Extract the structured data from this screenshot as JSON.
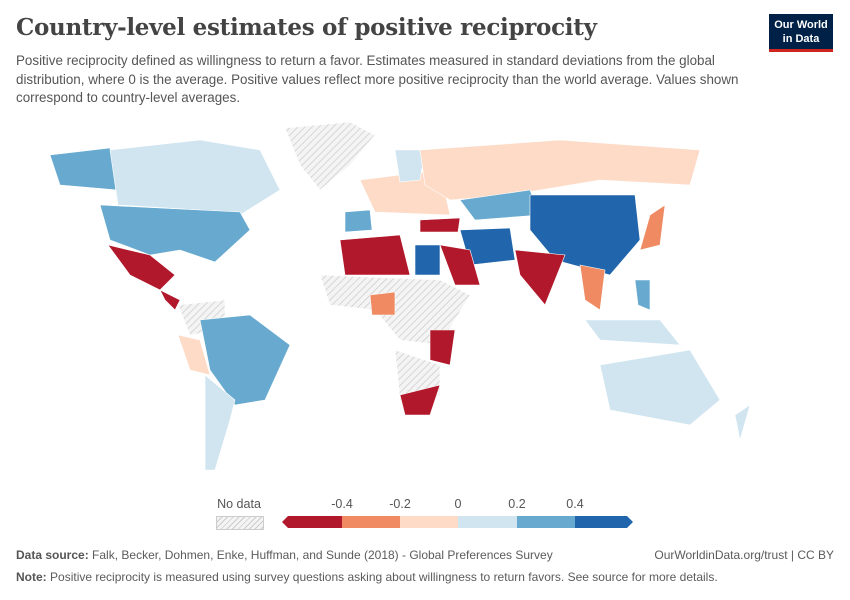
{
  "title": "Country-level estimates of positive reciprocity",
  "subtitle": "Positive reciprocity defined as willingness to return a favor. Estimates measured in standard deviations from the global distribution, where 0 is the average. Positive values reflect more positive reciprocity than the world average. Values shown correspond to country-level averages.",
  "logo": {
    "line1": "Our World",
    "line2": "in Data"
  },
  "legend": {
    "no_data": "No data",
    "ticks": [
      "-0.4",
      "-0.2",
      "0",
      "0.2",
      "0.4"
    ],
    "colors": [
      "#b2182b",
      "#ef8a62",
      "#fddbc7",
      "#d1e5f0",
      "#67a9cf",
      "#2166ac"
    ],
    "no_data_color": "#e8e8e8"
  },
  "footer": {
    "source_label": "Data source:",
    "source": "Falk, Becker, Dohmen, Enke, Huffman, and Sunde (2018) - Global Preferences Survey",
    "license": "OurWorldinData.org/trust | CC BY",
    "note_label": "Note:",
    "note": "Positive reciprocity is measured using survey questions asking about willingness to return favors. See source for more details."
  }
}
